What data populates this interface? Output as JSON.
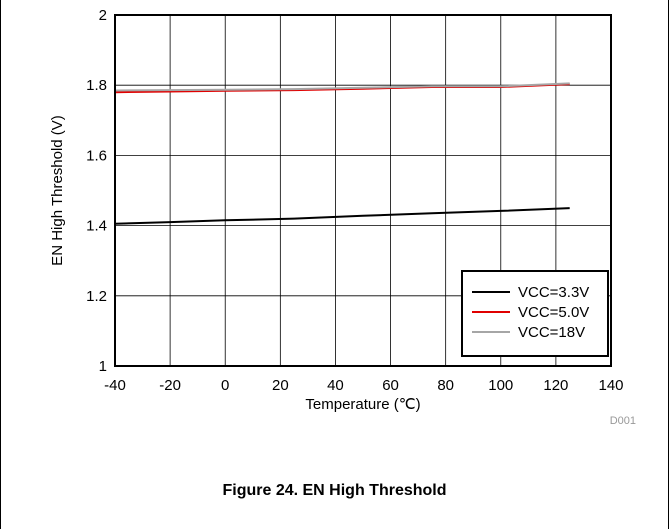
{
  "chart_data": {
    "type": "line",
    "xlabel": "Temperature (℃)",
    "ylabel": "EN High Threshold (V)",
    "xlim": [
      -40,
      140
    ],
    "ylim": [
      1,
      2
    ],
    "xticks": [
      "-40",
      "-20",
      "0",
      "20",
      "40",
      "60",
      "80",
      "100",
      "120",
      "140"
    ],
    "yticks": [
      "1",
      "1.2",
      "1.4",
      "1.6",
      "1.8",
      "2"
    ],
    "grid": true,
    "legend_position": "bottom-right",
    "series": [
      {
        "name": "VCC=3.3V",
        "color": "#000000",
        "x": [
          -40,
          -20,
          0,
          25,
          50,
          75,
          100,
          125
        ],
        "y": [
          1.405,
          1.41,
          1.415,
          1.42,
          1.428,
          1.435,
          1.442,
          1.45
        ]
      },
      {
        "name": "VCC=5.0V",
        "color": "#e00000",
        "x": [
          -40,
          -20,
          0,
          25,
          50,
          75,
          100,
          125
        ],
        "y": [
          1.78,
          1.782,
          1.784,
          1.786,
          1.79,
          1.795,
          1.795,
          1.803
        ]
      },
      {
        "name": "VCC=18V",
        "color": "#a6a6a6",
        "x": [
          -40,
          -20,
          0,
          25,
          50,
          75,
          100,
          125
        ],
        "y": [
          1.785,
          1.786,
          1.787,
          1.789,
          1.793,
          1.797,
          1.797,
          1.805
        ]
      }
    ],
    "code": "D001"
  },
  "caption": "Figure 24. EN High Threshold"
}
